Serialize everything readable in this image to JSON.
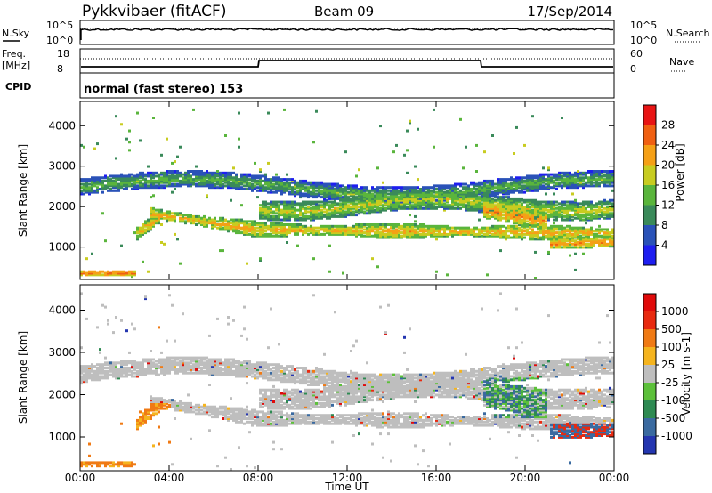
{
  "header": {
    "station": "Pykkvibaer (fitACF)",
    "beam": "Beam 09",
    "date": "17/Sep/2014"
  },
  "panels": {
    "nsky": {
      "label": "N.Sky",
      "left_ticks": [
        "10^5",
        "10^0"
      ],
      "right_ticks": [
        "10^5",
        "10^0"
      ],
      "legend": "N.Search"
    },
    "freq": {
      "label_line1": "Freq.",
      "label_line2": "[MHz]",
      "left_ticks": [
        "18",
        "8"
      ],
      "right_ticks": [
        "60",
        "0"
      ],
      "legend": "Nave"
    },
    "cpid": {
      "label": "CPID",
      "text": "normal (fast stereo) 153"
    }
  },
  "chart_data": [
    {
      "type": "heatmap",
      "title": "",
      "xlabel": "",
      "ylabel": "Slant Range [km]",
      "yticks": [
        "1000",
        "2000",
        "3000",
        "4000"
      ],
      "colorbar_label": "Power [dB]",
      "colorbar_ticks": [
        "4",
        "8",
        "12",
        "16",
        "20",
        "24",
        "28"
      ],
      "colors": [
        "#1e1ef0",
        "#2a52b8",
        "#3a8a5a",
        "#5ab53c",
        "#c8cc20",
        "#f5a016",
        "#f06012",
        "#e81414"
      ]
    },
    {
      "type": "heatmap",
      "title": "",
      "xlabel": "Time UT",
      "ylabel": "Slant Range [km]",
      "yticks": [
        "1000",
        "2000",
        "3000",
        "4000"
      ],
      "colorbar_label": "Velocity [m s-1]",
      "colorbar_ticks": [
        "1000",
        "500",
        "100",
        "25",
        "-25",
        "-100",
        "-500",
        "-1000"
      ],
      "colors": [
        "#2436b0",
        "#3a6aa0",
        "#2e8a52",
        "#5cc03a",
        "#bebebe",
        "#f5b41e",
        "#f07a14",
        "#e82a10",
        "#e00a0a"
      ],
      "xticks": [
        "00:00",
        "04:00",
        "08:00",
        "12:00",
        "16:00",
        "20:00",
        "00:00"
      ]
    }
  ]
}
